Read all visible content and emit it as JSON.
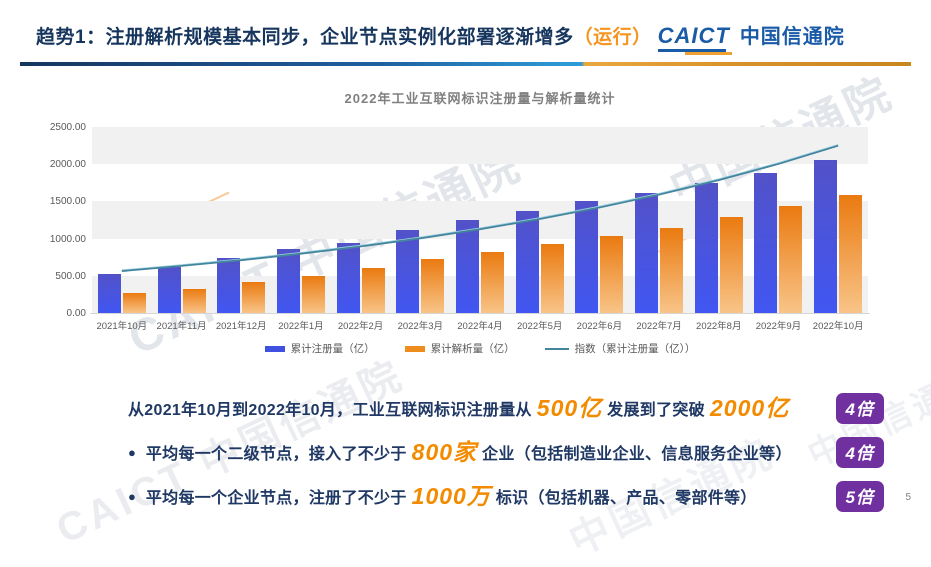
{
  "header": {
    "title_main": "趋势1：注册解析规模基本同步，企业节点实例化部署逐渐增多",
    "title_paren": "（运行）",
    "logo_en": "CAICT",
    "logo_cn": "中国信通院"
  },
  "chart_data": {
    "type": "bar",
    "title": "2022年工业互联网标识注册量与解析量统计",
    "categories": [
      "2021年10月",
      "2021年11月",
      "2021年12月",
      "2022年1月",
      "2022年2月",
      "2022年3月",
      "2022年4月",
      "2022年5月",
      "2022年6月",
      "2022年7月",
      "2022年8月",
      "2022年9月",
      "2022年10月"
    ],
    "series": [
      {
        "name": "累计注册量（亿）",
        "color_top": "#5252C8",
        "color_bottom": "#4156F2",
        "legend_color": "#4050E0",
        "values": [
          525,
          620,
          740,
          860,
          945,
          1115,
          1250,
          1370,
          1505,
          1615,
          1750,
          1880,
          2055
        ]
      },
      {
        "name": "累计解析量（亿）",
        "color_top": "#EA7A10",
        "color_bottom": "#F8C488",
        "legend_color": "#EE8C1E",
        "values": [
          270,
          325,
          415,
          495,
          605,
          725,
          820,
          925,
          1035,
          1140,
          1290,
          1440,
          1585
        ]
      }
    ],
    "trendline": {
      "name": "指数（累计注册量（亿））",
      "color": "#44859E",
      "start_value": 565,
      "end_value": 2250
    },
    "y_ticks": [
      "0.00",
      "500.00",
      "1000.00",
      "1500.00",
      "2000.00",
      "2500.00"
    ],
    "ylim": [
      0,
      2500
    ],
    "grid_bands": "alternating gray every 500",
    "band_color": "#F1F1F1",
    "legend_position": "bottom"
  },
  "notes": [
    {
      "bullet": false,
      "badge": "4倍",
      "segments": [
        {
          "text": "从2021年10月到2022年10月，工业互联网标识注册量从",
          "highlight": false
        },
        {
          "text": "500亿",
          "highlight": true
        },
        {
          "text": "发展到了突破",
          "highlight": false
        },
        {
          "text": "2000亿",
          "highlight": true
        }
      ]
    },
    {
      "bullet": true,
      "badge": "4倍",
      "segments": [
        {
          "text": "平均每一个二级节点，接入了不少于",
          "highlight": false
        },
        {
          "text": "800家",
          "highlight": true
        },
        {
          "text": "企业（包括制造业企业、信息服务企业等）",
          "highlight": false
        }
      ]
    },
    {
      "bullet": true,
      "badge": "5倍",
      "segments": [
        {
          "text": "平均每一个企业节点，注册了不少于",
          "highlight": false
        },
        {
          "text": "1000万",
          "highlight": true
        },
        {
          "text": "标识（包括机器、产品、零部件等）",
          "highlight": false
        }
      ]
    }
  ],
  "watermark_text": "CAICT 中国信通院",
  "watermark_text_short": "中国信通院",
  "page_number": "5",
  "colors": {
    "title_navy": "#17365D",
    "accent_orange": "#F28B00",
    "badge_purple": "#7030A0",
    "logo_blue": "#1A5BA8"
  }
}
